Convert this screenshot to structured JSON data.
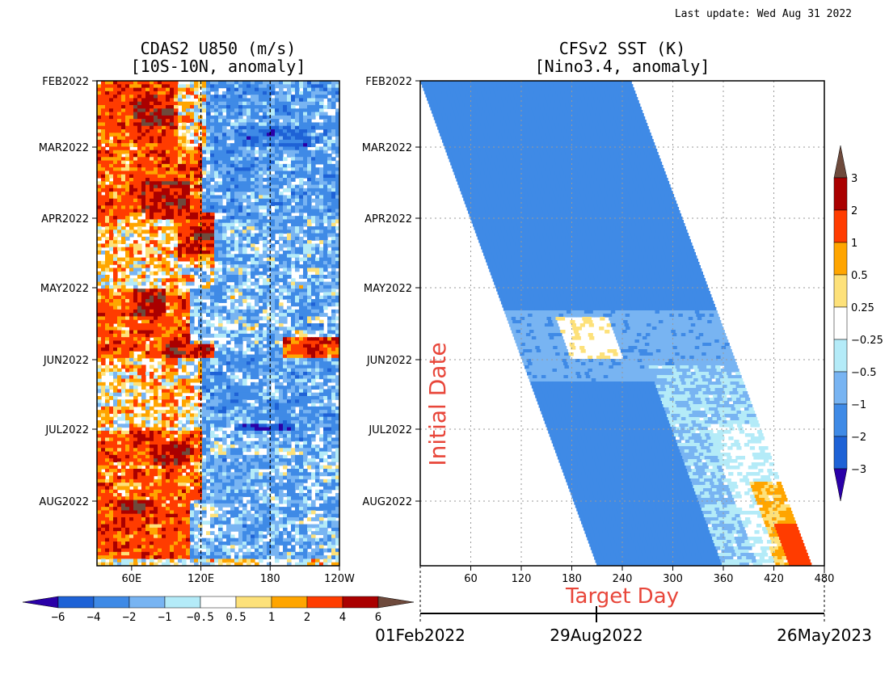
{
  "last_update": "Last update: Wed Aug 31 2022",
  "chart_data": [
    {
      "type": "heatmap",
      "title": "CDAS2 U850 (m/s)",
      "subtitle": "[10S-10N, anomaly]",
      "xlabel": "",
      "ylabel": "",
      "x_ticks": [
        "60E",
        "120E",
        "180",
        "120W"
      ],
      "x_tick_values": [
        60,
        120,
        180,
        240
      ],
      "xlim": [
        30,
        240
      ],
      "y_ticks": [
        "FEB2022",
        "MAR2022",
        "APR2022",
        "MAY2022",
        "JUN2022",
        "JUL2022",
        "AUG2022"
      ],
      "reference_lines_x": [
        120,
        180
      ],
      "colorbar": {
        "orientation": "horizontal",
        "tick_labels": [
          "−6",
          "−4",
          "−2",
          "−1",
          "−0.5",
          "0.5",
          "1",
          "2",
          "4",
          "6"
        ],
        "colors": [
          "#2a00a8",
          "#1e62d6",
          "#3f8ae6",
          "#78b4f2",
          "#b4ebf8",
          "#ffffff",
          "#fde17a",
          "#ffa500",
          "#ff3c00",
          "#aa0000",
          "#6e4a3c"
        ]
      },
      "regions": [
        {
          "x0": 30,
          "x1": 100,
          "date0": 0,
          "date1": 1.0,
          "value": 2.8
        },
        {
          "x0": 60,
          "x1": 95,
          "date0": 0.2,
          "date1": 0.7,
          "value": 5
        },
        {
          "x0": 100,
          "x1": 125,
          "date0": 0,
          "date1": 1.0,
          "value": 0.7
        },
        {
          "x0": 125,
          "x1": 240,
          "date0": 0,
          "date1": 1.0,
          "value": -2.2
        },
        {
          "x0": 150,
          "x1": 215,
          "date0": 0.7,
          "date1": 1.6,
          "value": -4
        },
        {
          "x0": 160,
          "x1": 210,
          "date0": 1.3,
          "date1": 1.8,
          "value": -5.5
        },
        {
          "x0": 30,
          "x1": 120,
          "date0": 1.0,
          "date1": 2.0,
          "value": 2.5
        },
        {
          "x0": 70,
          "x1": 110,
          "date0": 1.5,
          "date1": 1.9,
          "value": 5
        },
        {
          "x0": 120,
          "x1": 240,
          "date0": 1.0,
          "date1": 2.0,
          "value": -2
        },
        {
          "x0": 100,
          "x1": 130,
          "date0": 1.9,
          "date1": 2.6,
          "value": 3
        },
        {
          "x0": 115,
          "x1": 130,
          "date0": 2.1,
          "date1": 2.4,
          "value": 5
        },
        {
          "x0": 30,
          "x1": 100,
          "date0": 2.0,
          "date1": 3.0,
          "value": 0.7
        },
        {
          "x0": 130,
          "x1": 240,
          "date0": 2.0,
          "date1": 3.0,
          "value": -1.5
        },
        {
          "x0": 30,
          "x1": 110,
          "date0": 3.0,
          "date1": 4.0,
          "value": 2.5
        },
        {
          "x0": 60,
          "x1": 90,
          "date0": 3.0,
          "date1": 3.4,
          "value": 5
        },
        {
          "x0": 110,
          "x1": 240,
          "date0": 3.0,
          "date1": 4.0,
          "value": -1.5
        },
        {
          "x0": 190,
          "x1": 240,
          "date0": 3.7,
          "date1": 4.3,
          "value": 3
        },
        {
          "x0": 90,
          "x1": 130,
          "date0": 3.8,
          "date1": 4.1,
          "value": 4.5
        },
        {
          "x0": 30,
          "x1": 120,
          "date0": 4.0,
          "date1": 5.0,
          "value": 0.7
        },
        {
          "x0": 120,
          "x1": 240,
          "date0": 4.0,
          "date1": 5.0,
          "value": -2.2
        },
        {
          "x0": 150,
          "x1": 200,
          "date0": 4.9,
          "date1": 5.3,
          "value": -5
        },
        {
          "x0": 30,
          "x1": 120,
          "date0": 5.0,
          "date1": 6.0,
          "value": 2.5
        },
        {
          "x0": 75,
          "x1": 110,
          "date0": 5.2,
          "date1": 5.5,
          "value": 4.5
        },
        {
          "x0": 120,
          "x1": 240,
          "date0": 5.0,
          "date1": 6.0,
          "value": -1.5
        },
        {
          "x0": 30,
          "x1": 110,
          "date0": 6.0,
          "date1": 6.8,
          "value": 3
        },
        {
          "x0": 50,
          "x1": 80,
          "date0": 6.0,
          "date1": 6.2,
          "value": 5
        },
        {
          "x0": 110,
          "x1": 240,
          "date0": 6.0,
          "date1": 6.8,
          "value": -1.5
        }
      ]
    },
    {
      "type": "heatmap",
      "title": "CFSv2 SST (K)",
      "subtitle": "[Nino3.4, anomaly]",
      "xlabel": "Target Day",
      "ylabel": "Initial Date",
      "x_ticks": [
        "60",
        "120",
        "180",
        "240",
        "300",
        "360",
        "420",
        "480"
      ],
      "x_tick_values": [
        60,
        120,
        180,
        240,
        300,
        360,
        420,
        480
      ],
      "xlim": [
        0,
        480
      ],
      "y_ticks": [
        "FEB2022",
        "MAR2022",
        "APR2022",
        "MAY2022",
        "JUN2022",
        "JUL2022",
        "AUG2022"
      ],
      "grid": true,
      "date_axis": {
        "ticks": [
          "01Feb2022",
          "29Aug2022",
          "26May2023"
        ]
      },
      "colorbar": {
        "orientation": "vertical",
        "tick_labels": [
          "3",
          "2",
          "1",
          "0.5",
          "0.25",
          "−0.25",
          "−0.5",
          "−1",
          "−2",
          "−3"
        ],
        "colors": [
          "#6e4a3c",
          "#aa0000",
          "#ff3c00",
          "#ffa500",
          "#fde17a",
          "#ffffff",
          "#b4ebf8",
          "#78b4f2",
          "#3f8ae6",
          "#1e62d6",
          "#2a00a8"
        ]
      },
      "forecast_band": {
        "start_day_at_first_init": 0,
        "end_day_at_first_init": 250,
        "start_day_at_last_init": 210,
        "end_day_at_last_init": 465
      },
      "regions": [
        {
          "init0": 0,
          "init1": 1.5,
          "lead0": 0,
          "lead1": 5,
          "value": -0.4
        },
        {
          "init0": 0,
          "init1": 6.8,
          "lead0": 0,
          "lead1": 260,
          "value": -1.5
        },
        {
          "init0": 0,
          "init1": 2.5,
          "lead0": 40,
          "lead1": 260,
          "value": -1.5
        },
        {
          "init0": 3.2,
          "init1": 4.2,
          "lead0": 0,
          "lead1": 260,
          "value": -0.8
        },
        {
          "init0": 3.3,
          "init1": 3.9,
          "lead0": 60,
          "lead1": 120,
          "value": 0.1
        },
        {
          "init0": 4.0,
          "init1": 6.8,
          "lead0": 150,
          "lead1": 260,
          "value": -0.5
        },
        {
          "init0": 4.8,
          "init1": 6.8,
          "lead0": 190,
          "lead1": 260,
          "value": -0.2
        },
        {
          "init0": 5.6,
          "init1": 6.8,
          "lead0": 215,
          "lead1": 260,
          "value": 0.5
        },
        {
          "init0": 6.2,
          "init1": 6.8,
          "lead0": 230,
          "lead1": 260,
          "value": 1.5
        }
      ]
    }
  ]
}
